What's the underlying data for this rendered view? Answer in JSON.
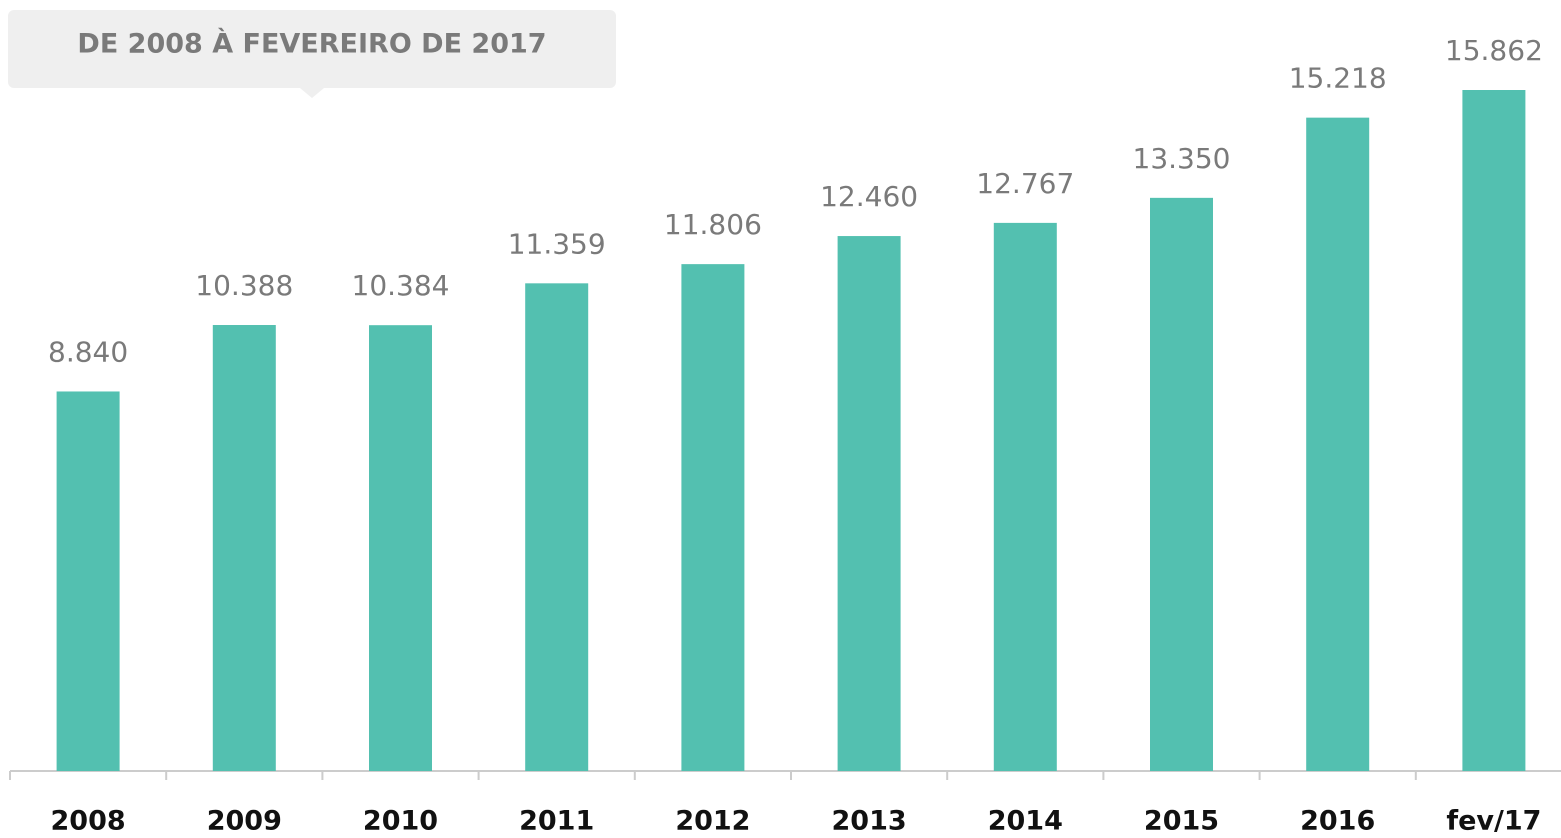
{
  "chart_data": {
    "type": "bar",
    "title": "DE 2008 À FEVEREIRO DE 2017",
    "categories": [
      "2008",
      "2009",
      "2010",
      "2011",
      "2012",
      "2013",
      "2014",
      "2015",
      "2016",
      "fev/17"
    ],
    "values": [
      8840,
      10388,
      10384,
      11359,
      11806,
      12460,
      12767,
      13350,
      15218,
      15862
    ],
    "value_labels": [
      "8.840",
      "10.388",
      "10.384",
      "11.359",
      "11.806",
      "12.460",
      "12.767",
      "13.350",
      "15.218",
      "15.862"
    ],
    "color": "#53c0b0"
  }
}
